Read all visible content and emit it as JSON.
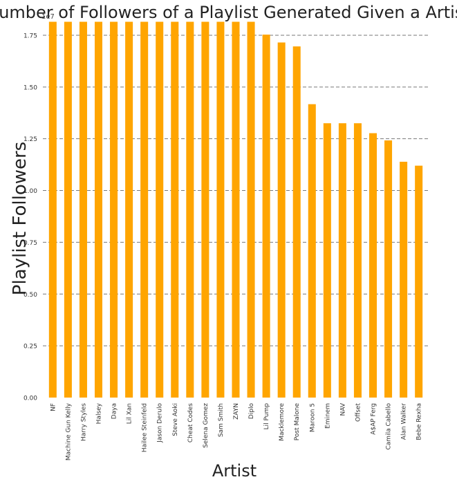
{
  "chart_data": {
    "type": "bar",
    "title": "Number of Followers of a Playlist Generated Given a Artist",
    "xlabel": "Artist",
    "ylabel": "Playlist Followers",
    "y_multiplier_label": "1e7",
    "ylim": [
      0,
      18200000
    ],
    "yticks": [
      0,
      2500000,
      5000000,
      7500000,
      10000000,
      12500000,
      15000000,
      17500000
    ],
    "ytick_labels": [
      "0.00",
      "0.25",
      "0.50",
      "0.75",
      "1.00",
      "1.25",
      "1.50",
      "1.75"
    ],
    "grid": "horizontal dashed",
    "bar_color": "#ffa500",
    "categories": [
      "NF",
      "Machine Gun Kelly",
      "Harry Styles",
      "Halsey",
      "Daya",
      "Lil Xan",
      "Hailee Steinfeld",
      "Jason Derulo",
      "Steve Aoki",
      "Cheat Codes",
      "Selena Gomez",
      "Sam Smith",
      "ZAYN",
      "Diplo",
      "Lil Pump",
      "Macklemore",
      "Post Malone",
      "Maroon 5",
      "Eminem",
      "NAV",
      "Offset",
      "A$AP Ferg",
      "Camila Cabello",
      "Alan Walker",
      "Bebe Rexha"
    ],
    "values": [
      18150000,
      18150000,
      18150000,
      18150000,
      18150000,
      18150000,
      18150000,
      18150000,
      18150000,
      18150000,
      18150000,
      18150000,
      18150000,
      18150000,
      17530000,
      17150000,
      16960000,
      14170000,
      13250000,
      13250000,
      13250000,
      12770000,
      12420000,
      11390000,
      11200000
    ]
  }
}
